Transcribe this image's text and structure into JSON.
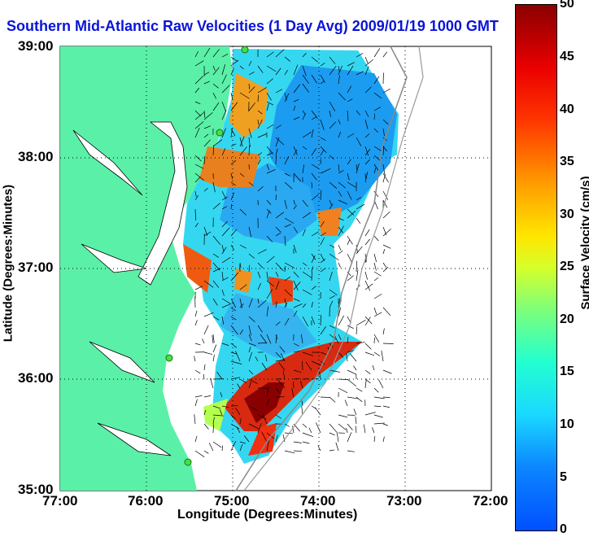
{
  "title": "Southern Mid-Atlantic Raw Velocities (1 Day Avg) 2009/01/19 1000 GMT",
  "xlabel": "Longitude (Degrees:Minutes)",
  "ylabel": "Latitude (Degrees:Minutes)",
  "x_ticks": [
    "77:00",
    "76:00",
    "75:00",
    "74:00",
    "73:00",
    "72:00"
  ],
  "y_ticks": [
    "39:00",
    "38:00",
    "37:00",
    "36:00",
    "35:00"
  ],
  "colorbar": {
    "label": "Surface Velocity (cm/s)",
    "ticks": [
      "50",
      "45",
      "40",
      "35",
      "30",
      "25",
      "20",
      "15",
      "10",
      "5",
      "0"
    ],
    "colors": [
      "#0050ff",
      "#1ad8ff",
      "#7dff7a",
      "#ffe600",
      "#ff3600",
      "#8a0000"
    ]
  },
  "land_color": "#5af0a8",
  "station_color": "#44e044"
}
